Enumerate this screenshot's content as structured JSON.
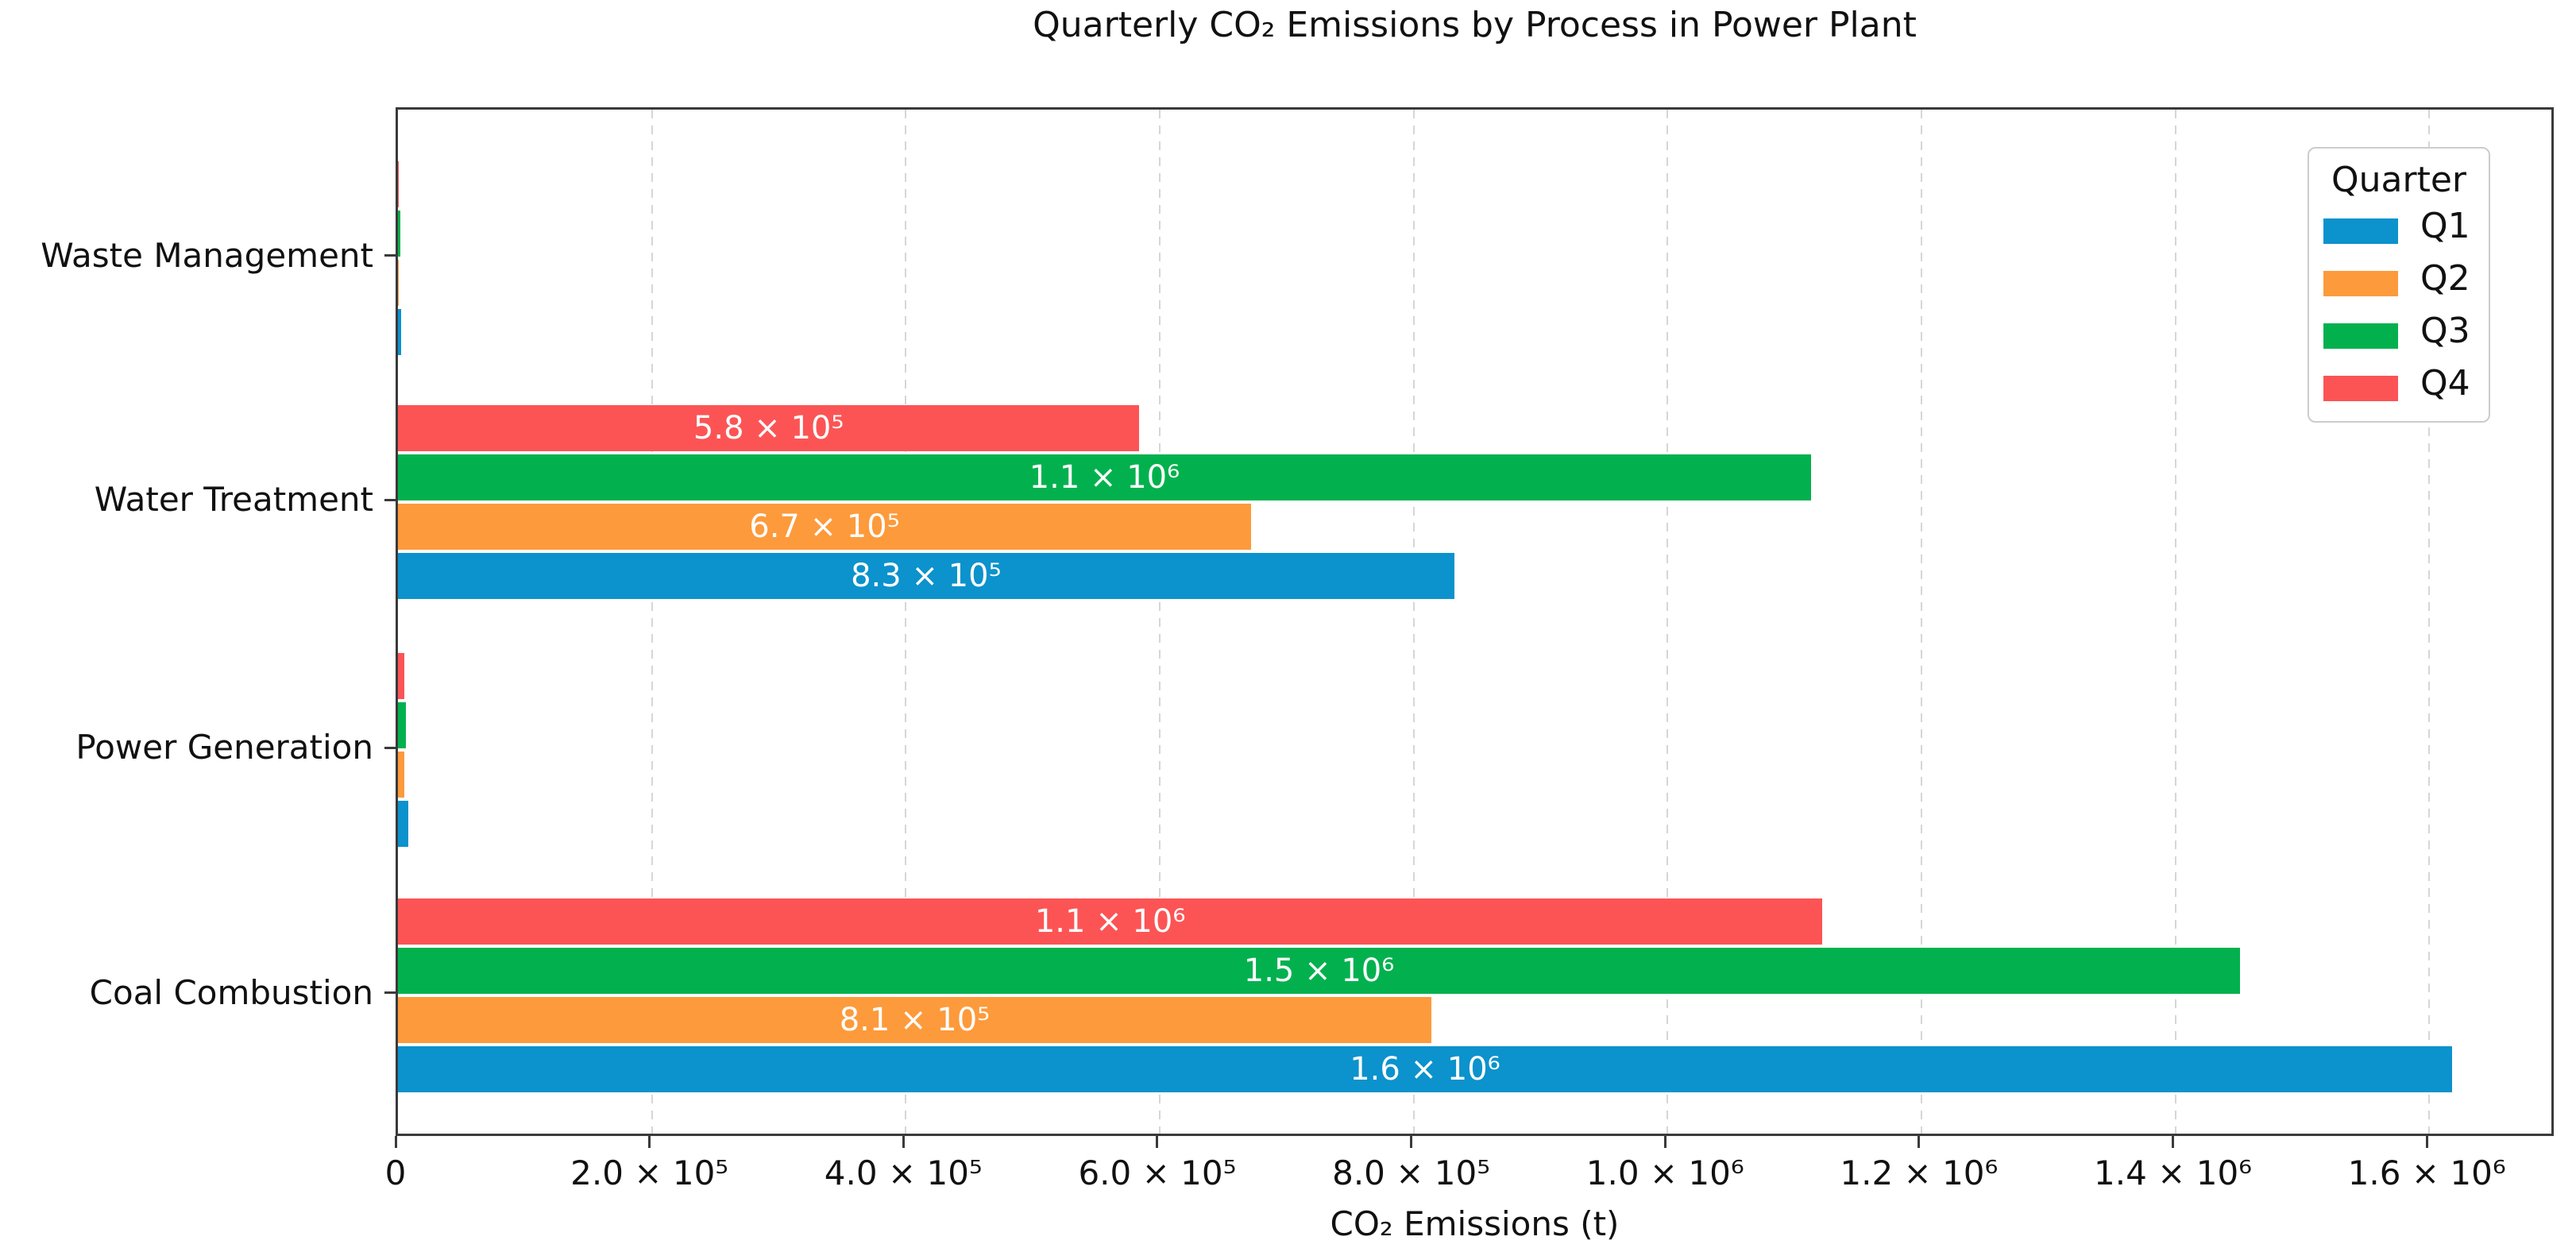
{
  "chart_data": {
    "type": "bar",
    "orientation": "horizontal",
    "title": "Quarterly CO₂ Emissions by Process in Power Plant",
    "xlabel": "CO₂ Emissions (t)",
    "ylabel": "",
    "xlim": [
      0,
      1700000
    ],
    "grid": "vertical-dashed",
    "background_color": "#ffffff",
    "spine_color": "#3a3a3a",
    "gridline_color": "#d6d6d6",
    "bar_label_color": "#ffffff",
    "categories_top_to_bottom": [
      "Waste Management",
      "Water Treatment",
      "Power Generation",
      "Coal Combustion"
    ],
    "xticks": [
      {
        "value": 0,
        "label": "0"
      },
      {
        "value": 200000,
        "label": "2.0 × 10⁵"
      },
      {
        "value": 400000,
        "label": "4.0 × 10⁵"
      },
      {
        "value": 600000,
        "label": "6.0 × 10⁵"
      },
      {
        "value": 800000,
        "label": "8.0 × 10⁵"
      },
      {
        "value": 1000000,
        "label": "1.0 × 10⁶"
      },
      {
        "value": 1200000,
        "label": "1.2 × 10⁶"
      },
      {
        "value": 1400000,
        "label": "1.4 × 10⁶"
      },
      {
        "value": 1600000,
        "label": "1.6 × 10⁶"
      }
    ],
    "series": [
      {
        "name": "Q1",
        "color": "#0c92cc",
        "values": [
          2500,
          832000,
          8000,
          1618000
        ],
        "bar_labels": [
          "",
          "8.3 × 10⁵",
          "",
          "1.6 × 10⁶"
        ]
      },
      {
        "name": "Q2",
        "color": "#fd9a3b",
        "values": [
          300,
          672000,
          5000,
          814000
        ],
        "bar_labels": [
          "",
          "6.7 × 10⁵",
          "",
          "8.1 × 10⁵"
        ]
      },
      {
        "name": "Q3",
        "color": "#02b14e",
        "values": [
          2000,
          1113000,
          6500,
          1451000
        ],
        "bar_labels": [
          "",
          "1.1 × 10⁶",
          "",
          "1.5 × 10⁶"
        ]
      },
      {
        "name": "Q4",
        "color": "#fc5455",
        "values": [
          300,
          584000,
          5000,
          1122000
        ],
        "bar_labels": [
          "",
          "5.8 × 10⁵",
          "",
          "1.1 × 10⁶"
        ]
      }
    ],
    "legend": {
      "title": "Quarter",
      "entries": [
        "Q1",
        "Q2",
        "Q3",
        "Q4"
      ],
      "position": "upper-right"
    }
  }
}
